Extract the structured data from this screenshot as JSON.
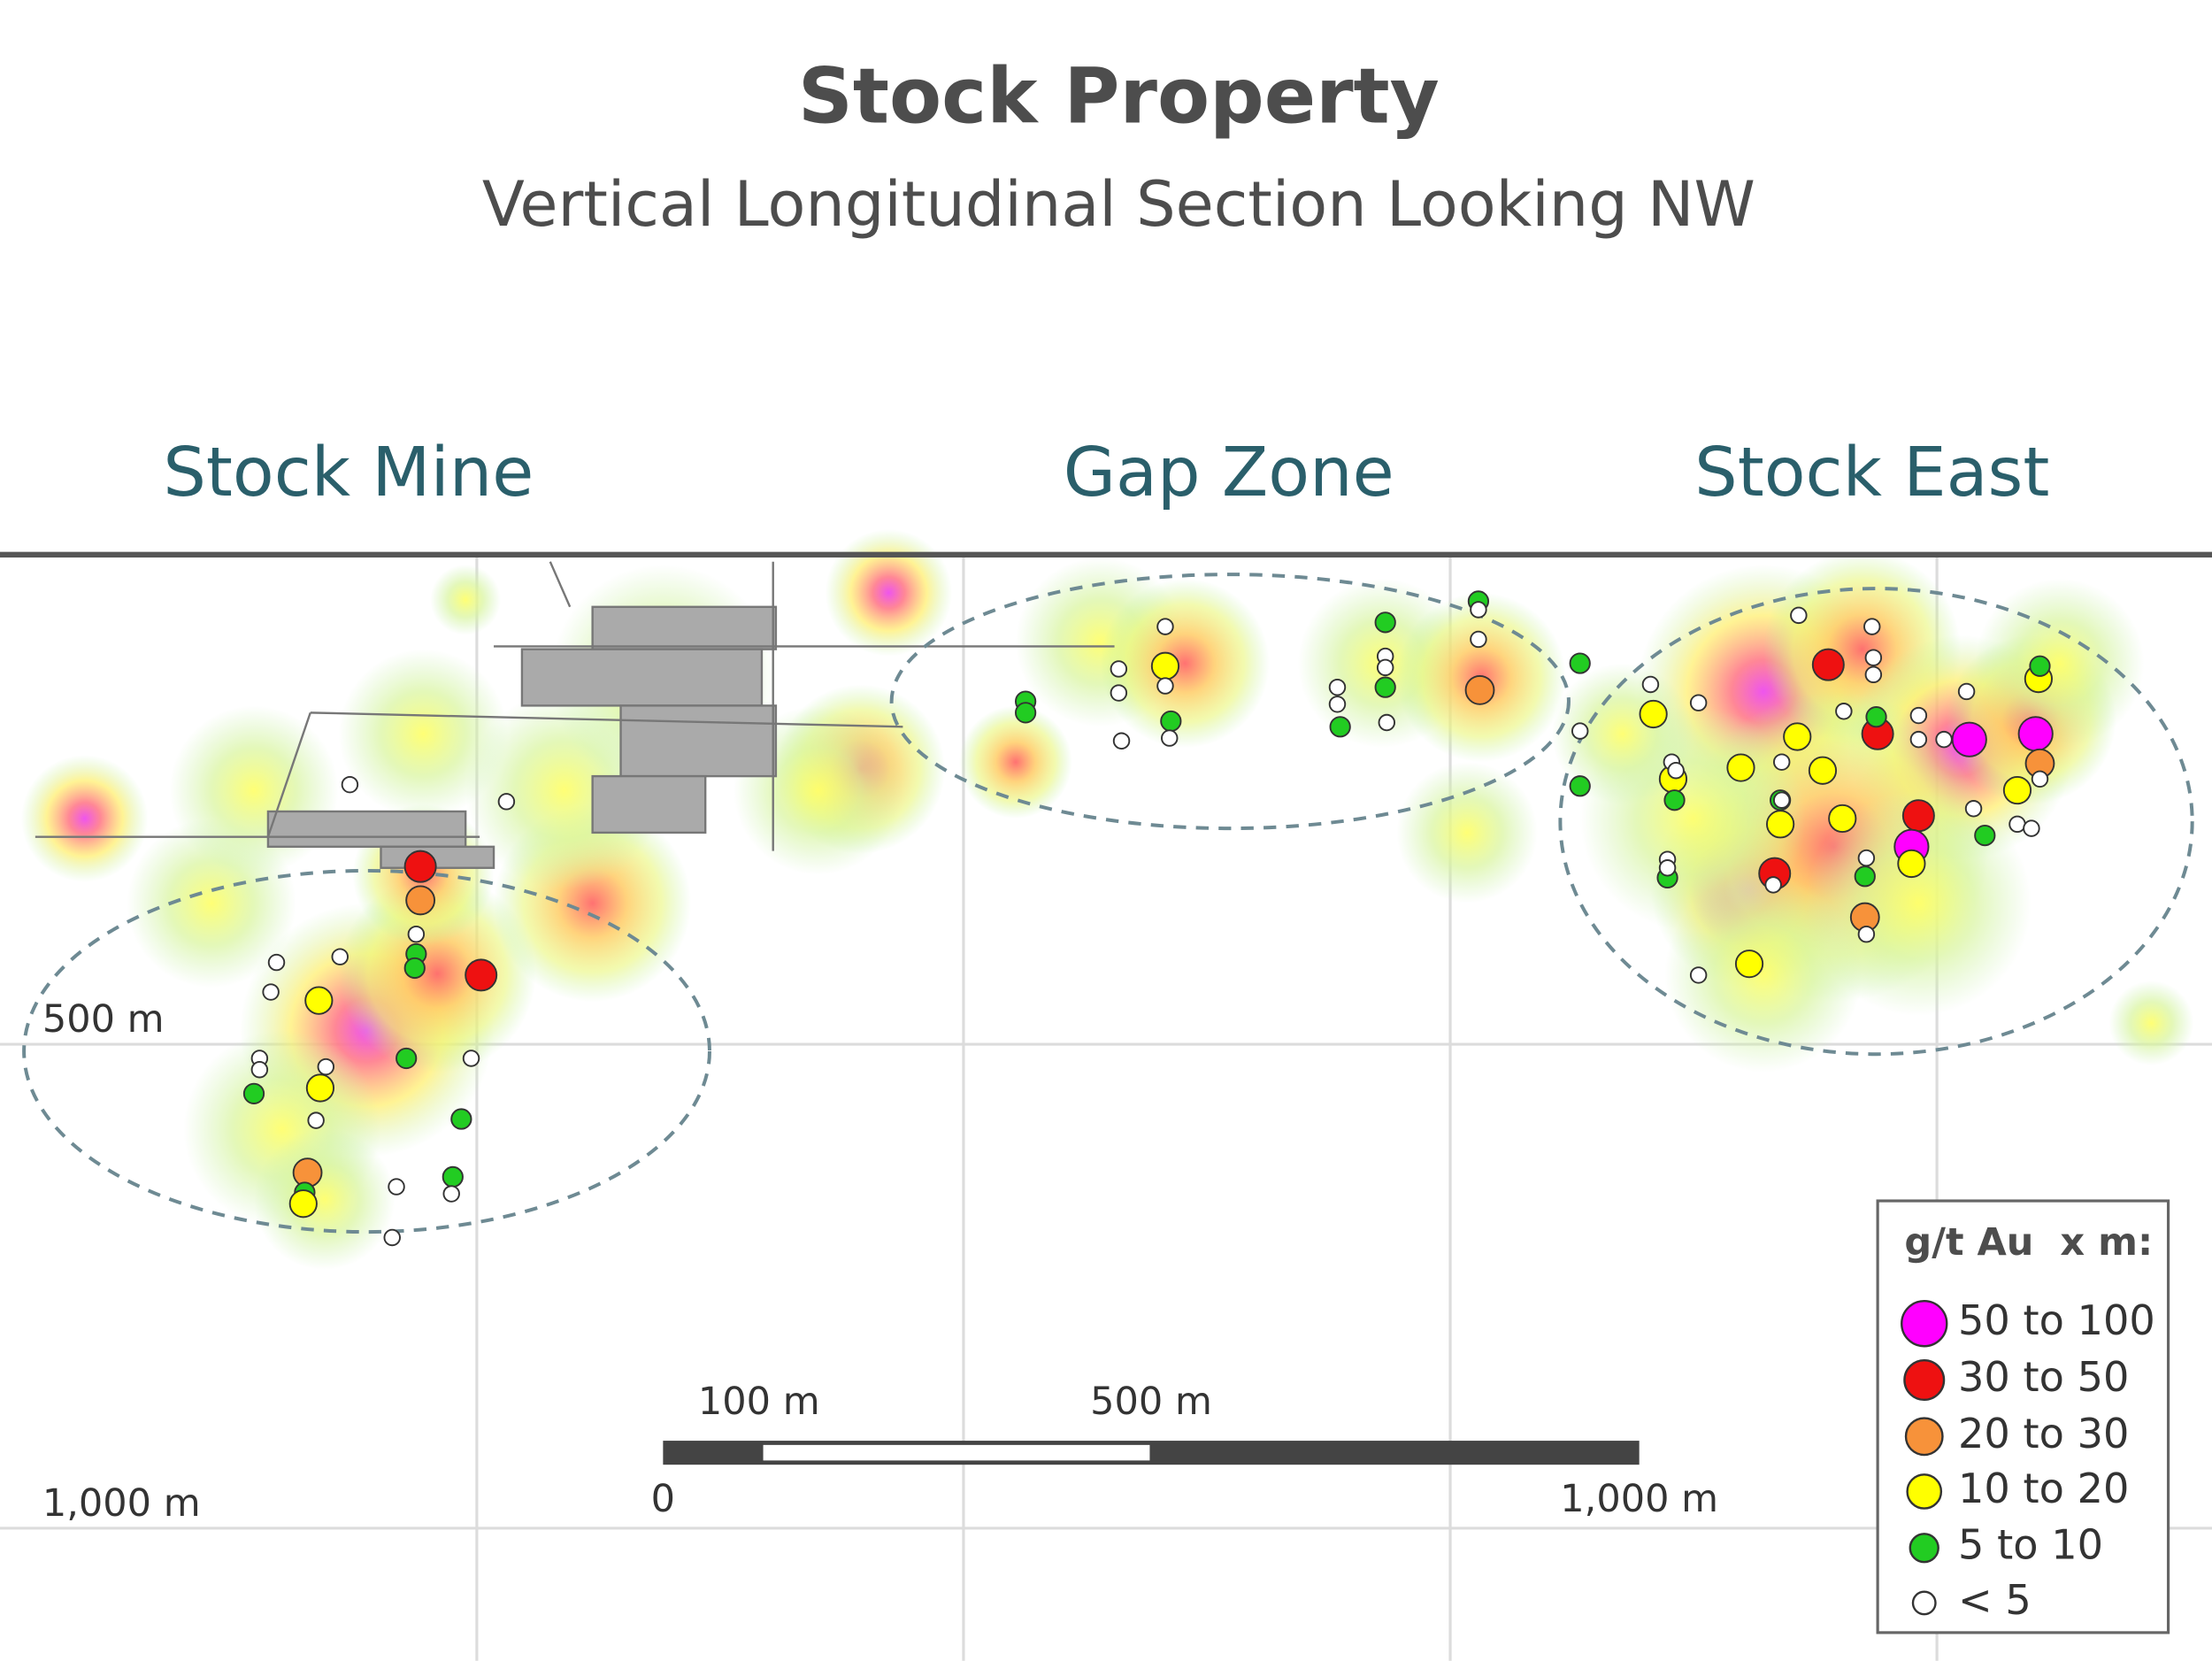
{
  "header": {
    "title": "Stock Property",
    "subtitle": "Vertical Longitudinal Section Looking NW"
  },
  "zones": [
    "Stock Mine",
    "Gap Zone",
    "Stock East"
  ],
  "depth_labels": [
    "500 m",
    "1,000 m"
  ],
  "scale_bar": {
    "labels": [
      "100 m",
      "500 m"
    ],
    "ends": [
      "0",
      "1,000 m"
    ]
  },
  "legend": {
    "title": "g/t Au  x m:",
    "items": [
      {
        "label": "50 to 100",
        "color": "#ff00ff"
      },
      {
        "label": "30 to 50",
        "color": "#ee1111"
      },
      {
        "label": "20 to 30",
        "color": "#f7923a"
      },
      {
        "label": "10 to 20",
        "color": "#ffff00"
      },
      {
        "label": "5 to 10",
        "color": "#22cc22"
      },
      {
        "label": "< 5",
        "color": "#ffffff"
      }
    ]
  }
}
